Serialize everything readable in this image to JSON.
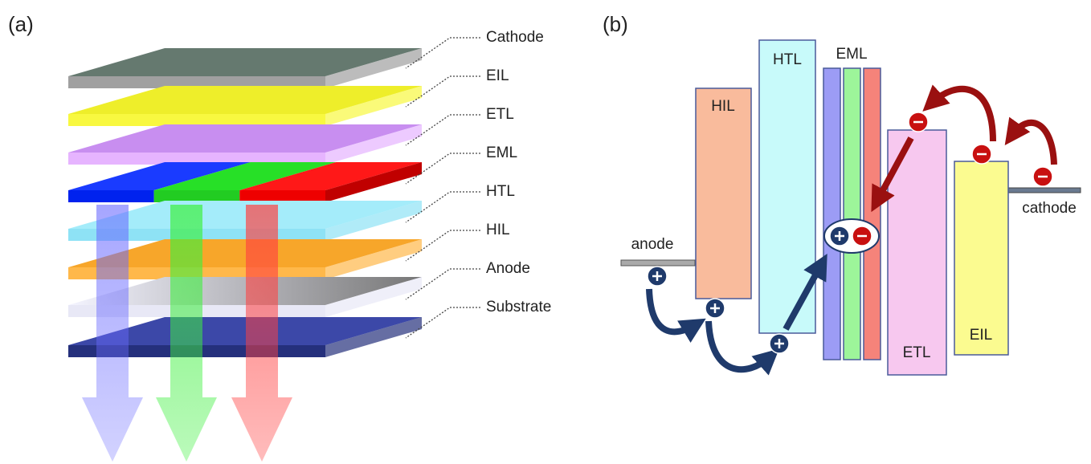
{
  "panel_a": {
    "label": "(a)",
    "layers": [
      "Cathode",
      "EIL",
      "ETL",
      "EML",
      "HTL",
      "HIL",
      "Anode",
      "Substrate"
    ]
  },
  "panel_b": {
    "label": "(b)",
    "blocks": {
      "hil": "HIL",
      "htl": "HTL",
      "eml": "EML",
      "etl": "ETL",
      "eil": "EIL"
    },
    "anode": "anode",
    "cathode": "cathode"
  }
}
